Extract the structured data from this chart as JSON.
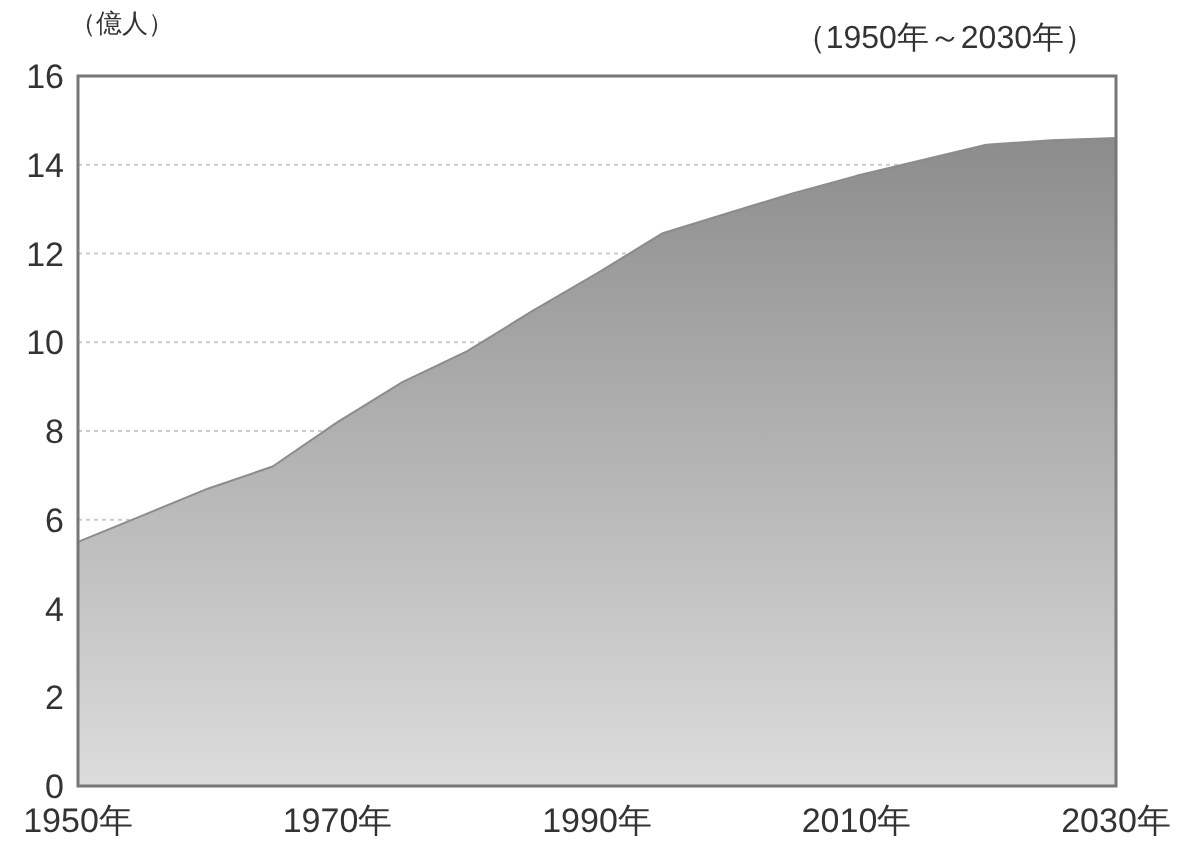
{
  "chart_data": {
    "type": "area",
    "ylabel": "（億人）",
    "annotations": [
      "（1950年～2030年）"
    ],
    "x": [
      1950,
      1955,
      1960,
      1965,
      1970,
      1975,
      1980,
      1985,
      1990,
      1995,
      2000,
      2005,
      2010,
      2015,
      2020,
      2025,
      2030
    ],
    "series": [
      {
        "color": "#8c8c8c",
        "values": [
          5.5,
          6.1,
          6.7,
          7.2,
          8.2,
          9.1,
          9.8,
          10.7,
          11.55,
          12.45,
          12.9,
          13.35,
          13.75,
          14.1,
          14.45,
          14.55,
          14.6
        ]
      }
    ],
    "xlim": [
      1950,
      2030
    ],
    "ylim": [
      0,
      16
    ],
    "xticks": [
      {
        "value": 1950,
        "label": "1950年"
      },
      {
        "value": 1970,
        "label": "1970年"
      },
      {
        "value": 1990,
        "label": "1990年"
      },
      {
        "value": 2010,
        "label": "2010年"
      },
      {
        "value": 2030,
        "label": "2030年"
      }
    ],
    "yticks": [
      0,
      2,
      4,
      6,
      8,
      10,
      12,
      14,
      16
    ],
    "grid": "y"
  }
}
